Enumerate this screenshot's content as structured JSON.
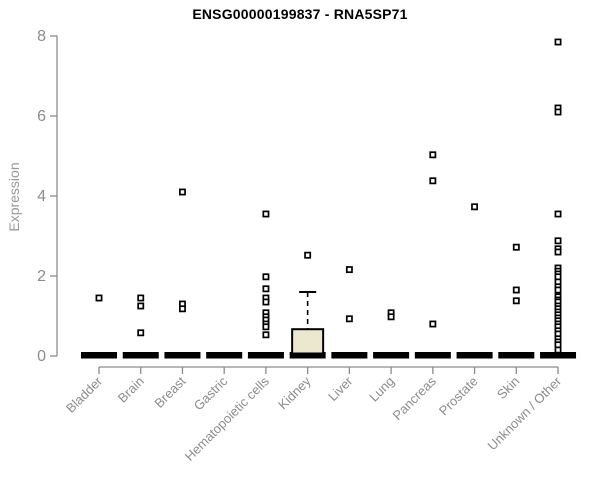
{
  "chart_data": {
    "type": "boxplot",
    "title": "ENSG00000199837 - RNA5SP71",
    "xlabel": "",
    "ylabel": "Expression",
    "ylim": [
      0,
      8
    ],
    "yticks": [
      0,
      2,
      4,
      6,
      8
    ],
    "grid": false,
    "legend": "none",
    "description": "Per-tissue expression boxplots; most samples are 0 so boxes collapse to thick black bars at y=0; individual non-zero samples drawn as small open squares",
    "categories": [
      "Bladder",
      "Brain",
      "Breast",
      "Gastric",
      "Hematopoietic cells",
      "Kidney",
      "Liver",
      "Lung",
      "Pancreas",
      "Prostate",
      "Skin",
      "Unknown / Other"
    ],
    "groups": [
      {
        "label": "Bladder",
        "zero_bar": true,
        "box": null,
        "points": [
          1.45
        ]
      },
      {
        "label": "Brain",
        "zero_bar": true,
        "box": null,
        "points": [
          1.45,
          1.25,
          0.58
        ]
      },
      {
        "label": "Breast",
        "zero_bar": true,
        "box": null,
        "points": [
          4.1,
          1.3,
          1.18
        ]
      },
      {
        "label": "Gastric",
        "zero_bar": true,
        "box": null,
        "points": []
      },
      {
        "label": "Hematopoietic cells",
        "zero_bar": true,
        "box": null,
        "points": [
          3.55,
          1.98,
          1.68,
          1.45,
          1.35,
          1.08,
          0.98,
          0.9,
          0.8,
          0.73,
          0.53
        ]
      },
      {
        "label": "Kidney",
        "zero_bar": true,
        "box": {
          "q1": 0,
          "median": 0,
          "q3": 0.67,
          "whisker_high": 1.6
        },
        "points": [
          2.52
        ]
      },
      {
        "label": "Liver",
        "zero_bar": true,
        "box": null,
        "points": [
          2.16,
          0.93
        ]
      },
      {
        "label": "Lung",
        "zero_bar": true,
        "box": null,
        "points": [
          1.08,
          0.98
        ]
      },
      {
        "label": "Pancreas",
        "zero_bar": true,
        "box": null,
        "points": [
          5.03,
          4.38,
          0.8
        ]
      },
      {
        "label": "Prostate",
        "zero_bar": true,
        "box": null,
        "points": [
          3.73
        ]
      },
      {
        "label": "Skin",
        "zero_bar": true,
        "box": null,
        "points": [
          2.72,
          1.65,
          1.38
        ]
      },
      {
        "label": "Unknown / Other",
        "zero_bar": true,
        "box": null,
        "points": [
          7.85,
          6.2,
          6.1,
          3.55,
          2.88,
          2.68,
          2.6,
          2.2,
          2.12,
          2.05,
          1.98,
          1.85,
          1.73,
          1.65,
          1.48,
          1.4,
          1.35,
          1.25,
          1.18,
          1.1,
          1.03,
          0.95,
          0.88,
          0.8,
          0.73,
          0.63,
          0.55,
          0.43,
          0.35,
          0.28,
          0.15
        ]
      }
    ],
    "colors": {
      "background": "#ffffff",
      "axis_line": "#8c8c8c",
      "tick_label": "#8c8c8c",
      "axis_title": "#999999",
      "title_text": "#000000",
      "box_fill": "#ece8cf",
      "box_stroke": "#000000",
      "zero_bar": "#000000",
      "point_stroke": "#000000",
      "point_fill": "#ffffff"
    }
  }
}
